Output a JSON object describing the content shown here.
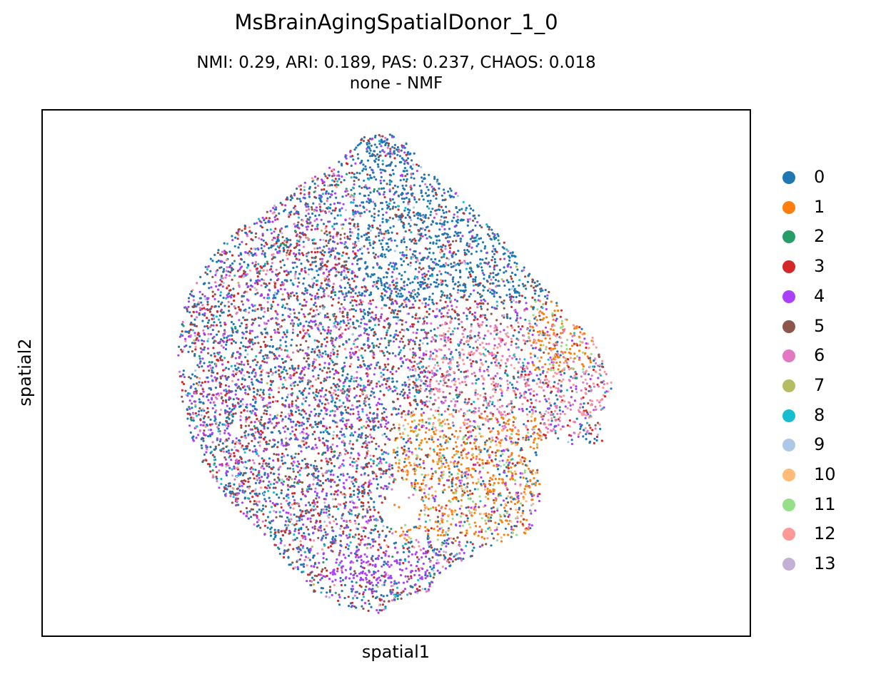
{
  "chart_data": {
    "type": "scatter",
    "title": "MsBrainAgingSpatialDonor_1_0",
    "subtitle_lines": [
      "NMI: 0.29,  ARI: 0.189,  PAS: 0.237,  CHAOS: 0.018",
      "none - NMF"
    ],
    "xlabel": "spatial1",
    "ylabel": "spatial2",
    "grid": false,
    "ticks": false,
    "legend_position": "right",
    "legend": [
      {
        "label": "0",
        "color": "#1f77b4"
      },
      {
        "label": "1",
        "color": "#ff7f0e"
      },
      {
        "label": "2",
        "color": "#279e68"
      },
      {
        "label": "3",
        "color": "#d62728"
      },
      {
        "label": "4",
        "color": "#aa40fc"
      },
      {
        "label": "5",
        "color": "#8c564b"
      },
      {
        "label": "6",
        "color": "#e377c2"
      },
      {
        "label": "7",
        "color": "#b5bd61"
      },
      {
        "label": "8",
        "color": "#17becf"
      },
      {
        "label": "9",
        "color": "#aec7e8"
      },
      {
        "label": "10",
        "color": "#ffbb78"
      },
      {
        "label": "11",
        "color": "#98df8a"
      },
      {
        "label": "12",
        "color": "#ff9896"
      },
      {
        "label": "13",
        "color": "#c5b0d5"
      }
    ]
  }
}
